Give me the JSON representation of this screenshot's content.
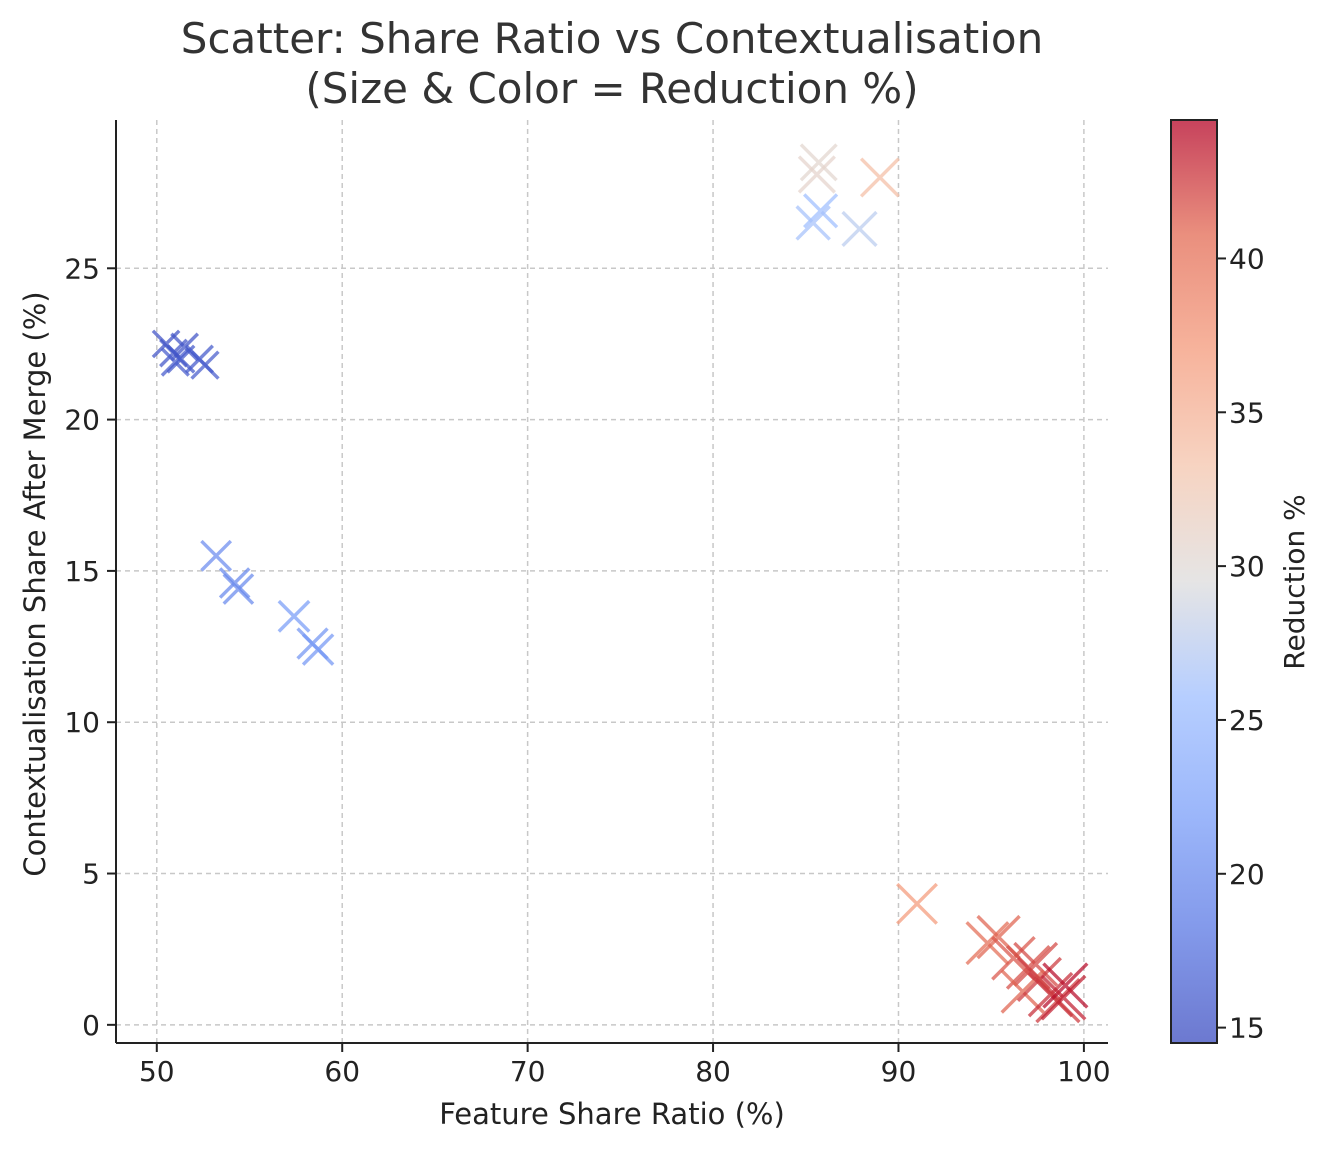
{
  "chart_data": {
    "type": "scatter",
    "marker": "x",
    "title": "Scatter: Share Ratio vs Contextualisation",
    "subtitle": "(Size & Color = Reduction %)",
    "xlabel": "Feature Share Ratio (%)",
    "ylabel": "Contextualisation Share After Merge (%)",
    "xlim": [
      47.8,
      101.3
    ],
    "ylim": [
      -0.6,
      29.9
    ],
    "xticks": [
      50,
      60,
      70,
      80,
      90,
      100
    ],
    "yticks": [
      0,
      5,
      10,
      15,
      20,
      25
    ],
    "grid": true,
    "colorbar": {
      "label": "Reduction %",
      "range": [
        14.5,
        44.5
      ],
      "ticks": [
        15,
        20,
        25,
        30,
        35,
        40
      ],
      "colormap": "coolwarm"
    },
    "points": [
      {
        "x": 50.5,
        "y": 22.5,
        "reduction": 15.0
      },
      {
        "x": 50.9,
        "y": 22.2,
        "reduction": 15.3
      },
      {
        "x": 51.3,
        "y": 22.0,
        "reduction": 15.5
      },
      {
        "x": 51.5,
        "y": 22.4,
        "reduction": 15.2
      },
      {
        "x": 51.0,
        "y": 21.9,
        "reduction": 15.8
      },
      {
        "x": 52.3,
        "y": 22.0,
        "reduction": 15.6
      },
      {
        "x": 52.6,
        "y": 21.8,
        "reduction": 15.9
      },
      {
        "x": 53.2,
        "y": 15.5,
        "reduction": 20.2
      },
      {
        "x": 54.2,
        "y": 14.6,
        "reduction": 19.8
      },
      {
        "x": 54.4,
        "y": 14.4,
        "reduction": 20.0
      },
      {
        "x": 57.4,
        "y": 13.5,
        "reduction": 21.8
      },
      {
        "x": 58.4,
        "y": 12.6,
        "reduction": 21.0
      },
      {
        "x": 58.7,
        "y": 12.4,
        "reduction": 21.3
      },
      {
        "x": 85.7,
        "y": 28.5,
        "reduction": 30.5
      },
      {
        "x": 85.6,
        "y": 28.1,
        "reduction": 30.8
      },
      {
        "x": 89.0,
        "y": 28.0,
        "reduction": 33.8
      },
      {
        "x": 85.8,
        "y": 26.9,
        "reduction": 25.8
      },
      {
        "x": 85.4,
        "y": 26.5,
        "reduction": 26.2
      },
      {
        "x": 87.9,
        "y": 26.3,
        "reduction": 27.5
      },
      {
        "x": 91.0,
        "y": 4.0,
        "reduction": 37.0
      },
      {
        "x": 94.8,
        "y": 2.7,
        "reduction": 40.5
      },
      {
        "x": 95.4,
        "y": 2.9,
        "reduction": 41.0
      },
      {
        "x": 96.2,
        "y": 2.2,
        "reduction": 41.5
      },
      {
        "x": 97.0,
        "y": 1.9,
        "reduction": 41.8
      },
      {
        "x": 97.4,
        "y": 2.0,
        "reduction": 42.0
      },
      {
        "x": 96.7,
        "y": 1.1,
        "reduction": 41.0
      },
      {
        "x": 97.6,
        "y": 1.5,
        "reduction": 42.5
      },
      {
        "x": 98.2,
        "y": 1.0,
        "reduction": 43.0
      },
      {
        "x": 98.6,
        "y": 0.8,
        "reduction": 42.6
      },
      {
        "x": 99.0,
        "y": 1.3,
        "reduction": 44.2
      },
      {
        "x": 98.9,
        "y": 0.9,
        "reduction": 43.5
      }
    ]
  }
}
